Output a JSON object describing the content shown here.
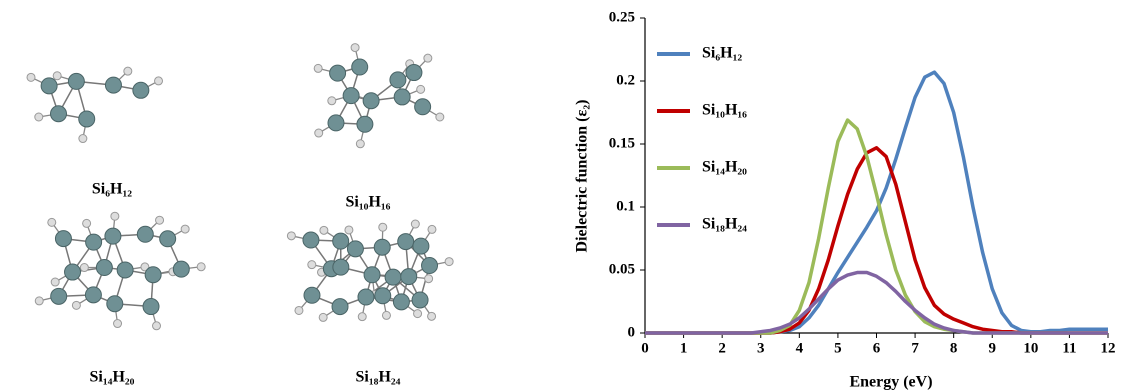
{
  "molecules": [
    "Si₆H₁₂",
    "Si₁₀H₁₆",
    "Si₁₄H₂₀",
    "Si₁₈H₂₄"
  ],
  "chart_data": {
    "type": "line",
    "x_label": "Energy (eV)",
    "y_label": "Dielectric function (ε₂)",
    "x": [
      0,
      0.25,
      0.5,
      0.75,
      1,
      1.25,
      1.5,
      1.75,
      2,
      2.25,
      2.5,
      2.75,
      3,
      3.25,
      3.5,
      3.75,
      4,
      4.25,
      4.5,
      4.75,
      5,
      5.25,
      5.5,
      5.75,
      6,
      6.25,
      6.5,
      6.75,
      7,
      7.25,
      7.5,
      7.75,
      8,
      8.25,
      8.5,
      8.75,
      9,
      9.25,
      9.5,
      9.75,
      10,
      10.25,
      10.5,
      10.75,
      11,
      11.25,
      11.5,
      11.75,
      12
    ],
    "series": [
      {
        "name": "Si₆H₁₂",
        "color": "#4f81bd",
        "values": [
          0,
          0,
          0,
          0,
          0,
          0,
          0,
          0,
          0,
          0,
          0,
          0,
          0,
          0,
          0.001,
          0.002,
          0.005,
          0.012,
          0.022,
          0.035,
          0.048,
          0.06,
          0.072,
          0.084,
          0.097,
          0.115,
          0.138,
          0.163,
          0.187,
          0.203,
          0.207,
          0.198,
          0.175,
          0.14,
          0.1,
          0.064,
          0.035,
          0.016,
          0.006,
          0.002,
          0.001,
          0.001,
          0.002,
          0.002,
          0.003,
          0.003,
          0.003,
          0.003,
          0.003
        ]
      },
      {
        "name": "Si₁₀H₁₆",
        "color": "#c00000",
        "values": [
          0,
          0,
          0,
          0,
          0,
          0,
          0,
          0,
          0,
          0,
          0,
          0,
          0,
          0,
          0.001,
          0.003,
          0.008,
          0.018,
          0.035,
          0.058,
          0.085,
          0.11,
          0.13,
          0.143,
          0.147,
          0.14,
          0.118,
          0.088,
          0.058,
          0.036,
          0.022,
          0.015,
          0.011,
          0.008,
          0.005,
          0.003,
          0.002,
          0.001,
          0.001,
          0,
          0,
          0,
          0,
          0,
          0,
          0,
          0,
          0,
          0
        ]
      },
      {
        "name": "Si₁₄H₂₀",
        "color": "#9bbb59",
        "values": [
          0,
          0,
          0,
          0,
          0,
          0,
          0,
          0,
          0,
          0,
          0,
          0,
          0,
          0,
          0.002,
          0.006,
          0.018,
          0.04,
          0.075,
          0.115,
          0.152,
          0.169,
          0.162,
          0.14,
          0.11,
          0.078,
          0.05,
          0.03,
          0.017,
          0.009,
          0.005,
          0.003,
          0.002,
          0.001,
          0,
          0,
          0,
          0,
          0,
          0,
          0,
          0,
          0,
          0,
          0,
          0,
          0,
          0,
          0
        ]
      },
      {
        "name": "Si₁₈H₂₄",
        "color": "#8064a2",
        "values": [
          0,
          0,
          0,
          0,
          0,
          0,
          0,
          0,
          0,
          0,
          0,
          0,
          0.001,
          0.002,
          0.004,
          0.007,
          0.012,
          0.019,
          0.027,
          0.035,
          0.042,
          0.046,
          0.048,
          0.048,
          0.045,
          0.04,
          0.033,
          0.025,
          0.018,
          0.012,
          0.007,
          0.004,
          0.002,
          0.001,
          0,
          0,
          0,
          0,
          0,
          0,
          0,
          0,
          0,
          0,
          0,
          0,
          0,
          0,
          0
        ]
      }
    ],
    "xlim": [
      0,
      12
    ],
    "xticks": [
      0,
      1,
      2,
      3,
      4,
      5,
      6,
      7,
      8,
      9,
      10,
      11,
      12
    ],
    "ylim": [
      0,
      0.25
    ],
    "yticks": [
      0,
      0.05,
      0.1,
      0.15,
      0.2,
      0.25
    ],
    "grid": false,
    "legend": "upper left"
  }
}
